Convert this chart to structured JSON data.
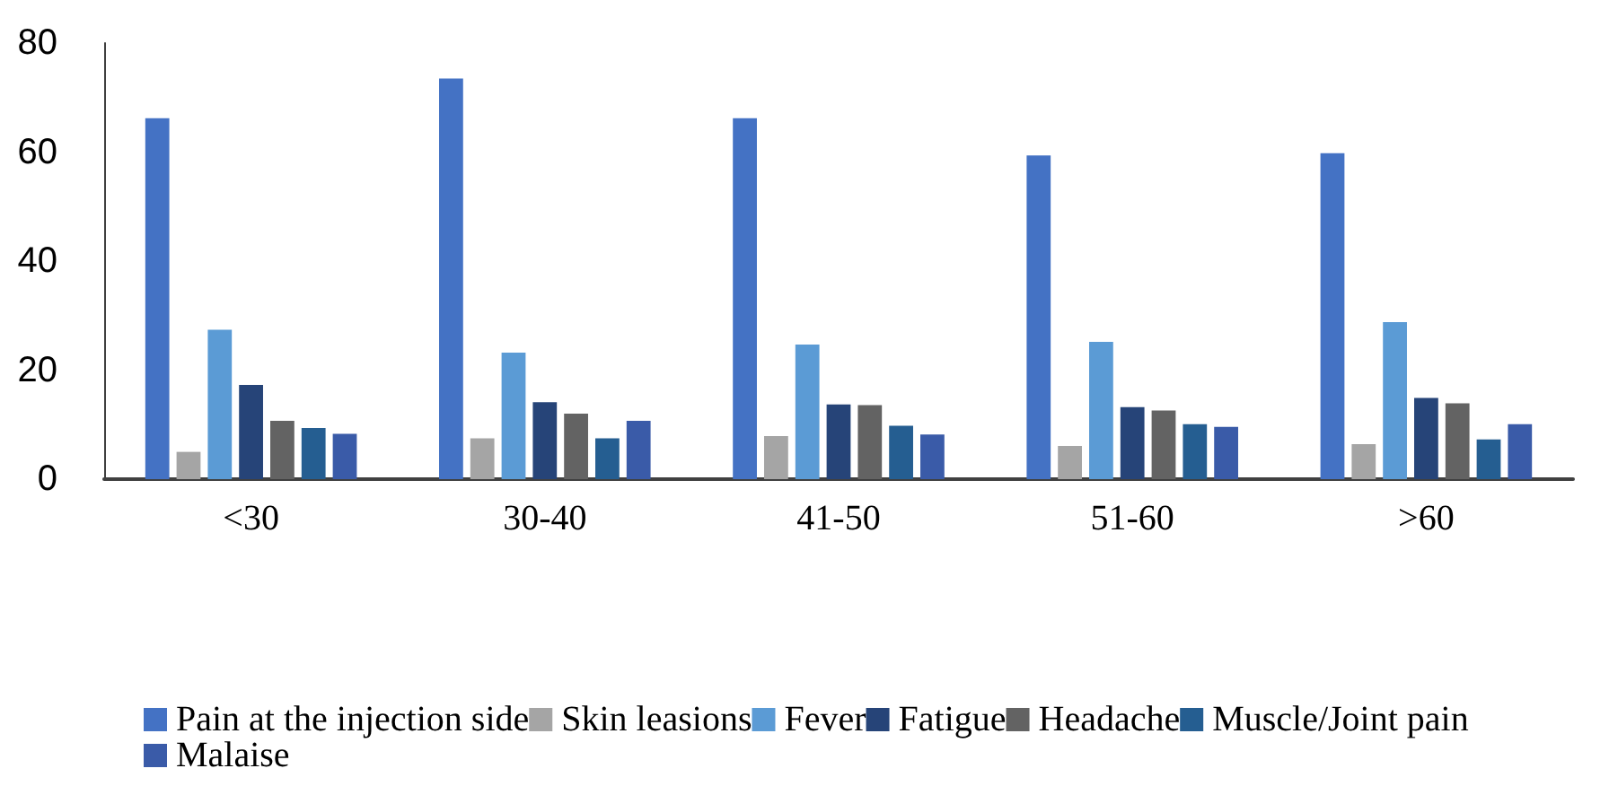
{
  "chart_data": {
    "type": "bar",
    "categories": [
      "<30",
      "30-40",
      "41-50",
      "51-60",
      ">60"
    ],
    "series": [
      {
        "name": "Pain at the injection side",
        "color": "#4472c4",
        "values": [
          66.2,
          73.5,
          66.2,
          59.4,
          59.8
        ]
      },
      {
        "name": "Skin leasions",
        "color": "#a5a5a5",
        "values": [
          5.0,
          7.5,
          7.9,
          6.1,
          6.4
        ]
      },
      {
        "name": "Fever",
        "color": "#5b9bd5",
        "values": [
          27.4,
          23.2,
          24.7,
          25.2,
          28.8
        ]
      },
      {
        "name": "Fatigue",
        "color": "#264478",
        "values": [
          17.3,
          14.1,
          13.7,
          13.2,
          14.9
        ]
      },
      {
        "name": "Headache",
        "color": "#636363",
        "values": [
          10.7,
          12.0,
          13.6,
          12.6,
          13.9
        ]
      },
      {
        "name": "Muscle/Joint pain",
        "color": "#255e91",
        "values": [
          9.4,
          7.5,
          9.8,
          10.1,
          7.3
        ]
      },
      {
        "name": "Malaise",
        "color": "#3a5ba8",
        "values": [
          8.3,
          10.7,
          8.2,
          9.6,
          10.1
        ]
      }
    ],
    "ylim": [
      0,
      80
    ],
    "yticks": [
      0,
      20,
      40,
      60,
      80
    ],
    "grid": false,
    "legend": "bottom"
  }
}
